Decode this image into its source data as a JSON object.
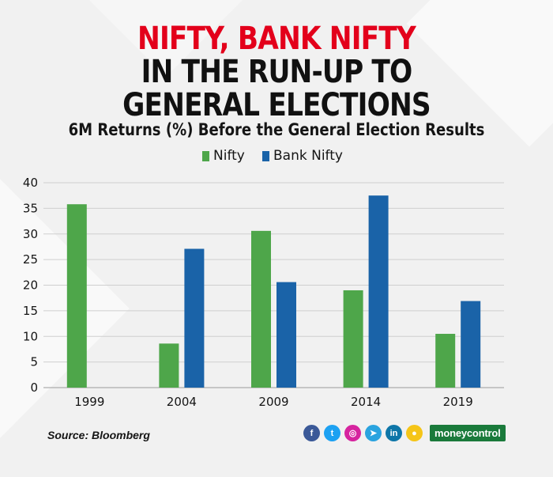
{
  "header": {
    "title_line1": "NIFTY, BANK NIFTY",
    "title_line2": "IN THE RUN-UP TO",
    "title_line3": "GENERAL ELECTIONS",
    "subtitle": "6M Returns (%) Before the General Election Results"
  },
  "colors": {
    "nifty": "#4ea64a",
    "bank_nifty": "#1a63a8",
    "title_accent": "#e3001b",
    "brand_bg": "#1a7a3b"
  },
  "chart_data": {
    "type": "bar",
    "categories": [
      "1999",
      "2004",
      "2009",
      "2014",
      "2019"
    ],
    "series": [
      {
        "name": "Nifty",
        "values": [
          35.8,
          8.6,
          30.6,
          19.0,
          10.5
        ]
      },
      {
        "name": "Bank Nifty",
        "values": [
          null,
          27.1,
          20.6,
          37.5,
          16.9
        ]
      }
    ],
    "yticks": [
      0,
      5,
      10,
      15,
      20,
      25,
      30,
      35,
      40
    ],
    "ylim": [
      0,
      40
    ],
    "grid": true,
    "legend": "top-center"
  },
  "footer": {
    "source": "Source: Bloomberg",
    "brand": "moneycontrol",
    "social_icons": [
      {
        "name": "facebook-icon",
        "glyph": "f",
        "color": "#3b5998"
      },
      {
        "name": "twitter-icon",
        "glyph": "t",
        "color": "#1da1f2"
      },
      {
        "name": "instagram-icon",
        "glyph": "◎",
        "color": "#d6249f"
      },
      {
        "name": "telegram-icon",
        "glyph": "➤",
        "color": "#2aa3df"
      },
      {
        "name": "linkedin-icon",
        "glyph": "in",
        "color": "#0e76a8"
      },
      {
        "name": "koo-icon",
        "glyph": "●",
        "color": "#f5c518"
      }
    ]
  }
}
